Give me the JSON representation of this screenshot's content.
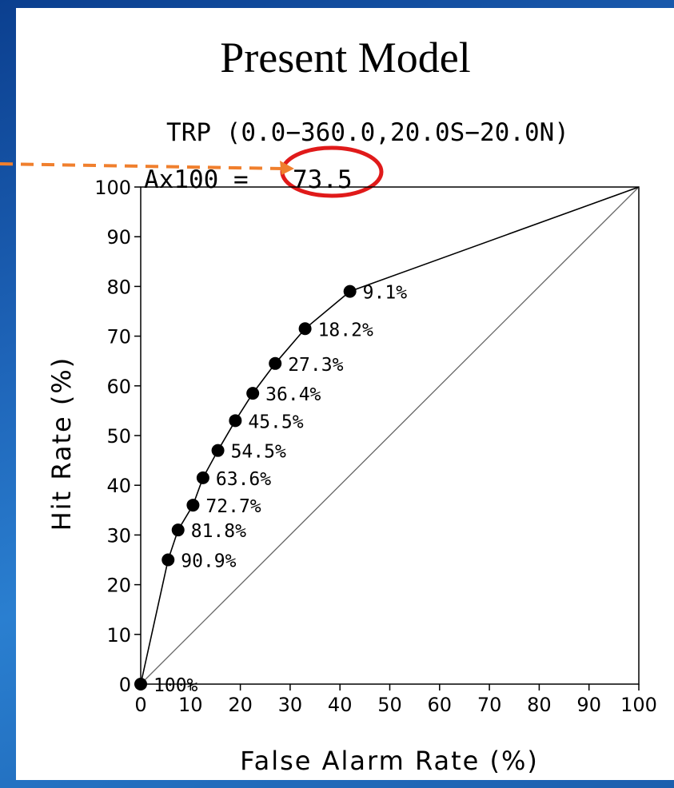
{
  "slide": {
    "heading": "Present Model",
    "colors": {
      "background": "#1e64b8",
      "panel": "#ffffff",
      "arrow": "#f07f2d",
      "highlight_circle": "#e01a1a"
    }
  },
  "chart_data": {
    "type": "line",
    "title": "TRP (0.0−360.0,20.0S−20.0N)",
    "subtitle_label": "Ax100 =",
    "subtitle_value": "73.5",
    "xlabel": "False Alarm Rate (%)",
    "ylabel": "Hit Rate (%)",
    "xlim": [
      0,
      100
    ],
    "ylim": [
      0,
      100
    ],
    "xticks": [
      0,
      10,
      20,
      30,
      40,
      50,
      60,
      70,
      80,
      90,
      100
    ],
    "yticks": [
      0,
      10,
      20,
      30,
      40,
      50,
      60,
      70,
      80,
      90,
      100
    ],
    "series": [
      {
        "x": [
          0,
          5.5,
          7.5,
          10.5,
          12.5,
          15.5,
          19,
          22.5,
          27,
          33,
          42,
          100
        ],
        "y": [
          0,
          25,
          31,
          36,
          41.5,
          47,
          53,
          58.5,
          64.5,
          71.5,
          79,
          100
        ],
        "point_labels": [
          "100%",
          "90.9%",
          "81.8%",
          "72.7%",
          "63.6%",
          "54.5%",
          "45.5%",
          "36.4%",
          "27.3%",
          "18.2%",
          "9.1%",
          ""
        ]
      },
      {
        "x": [
          0,
          100
        ],
        "y": [
          0,
          100
        ]
      }
    ],
    "grid": false,
    "legend": "none"
  }
}
